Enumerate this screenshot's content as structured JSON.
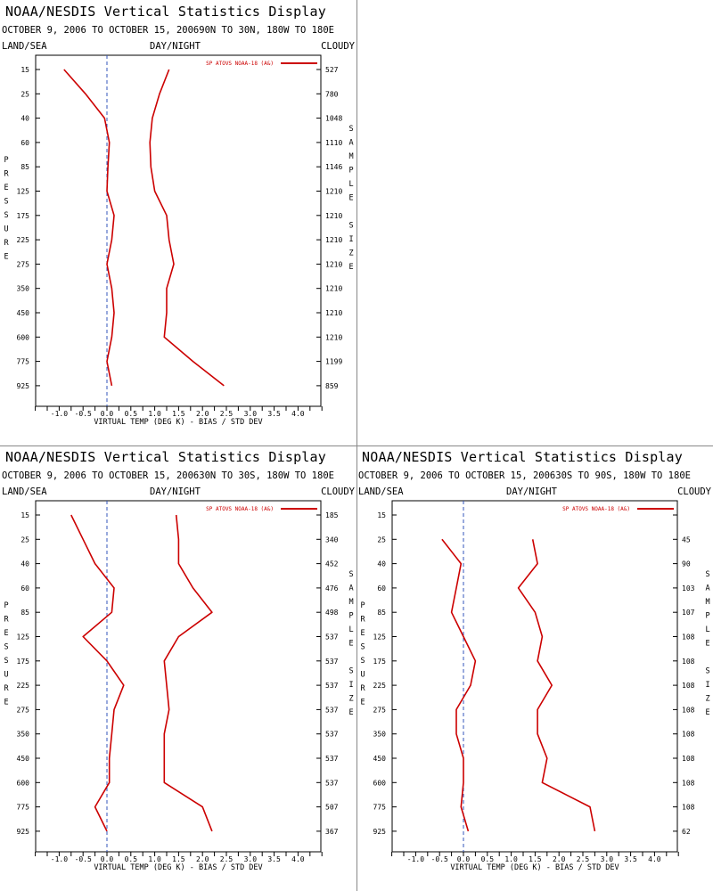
{
  "chart_data": [
    {
      "type": "line",
      "title": "NOAA/NESDIS Vertical Statistics Display",
      "subtitle": "OCTOBER 9, 2006 TO OCTOBER 15, 200690N TO 30N, 180W TO 180E",
      "left_label": "LAND/SEA",
      "center_label": "DAY/NIGHT",
      "right_label": "CLOUDY",
      "xlabel": "VIRTUAL TEMP (DEG K) - BIAS / STD DEV",
      "ylabel": "PRESSURE",
      "y2label": "SAMPLE SIZE",
      "legend_entry": "SP ATOVS NOAA-18 (A&)",
      "legend_position": "top-right",
      "xlim": [
        -1.5,
        4.5
      ],
      "xticks": [
        "-1.0",
        "-0.5",
        "0.0",
        "0.5",
        "1.0",
        "1.5",
        "2.0",
        "2.5",
        "3.0",
        "3.5",
        "4.0"
      ],
      "pressure_levels": [
        "15",
        "25",
        "40",
        "60",
        "85",
        "125",
        "175",
        "225",
        "275",
        "350",
        "450",
        "600",
        "775",
        "925"
      ],
      "sample_size": [
        "527",
        "780",
        "1048",
        "1110",
        "1146",
        "1210",
        "1210",
        "1210",
        "1210",
        "1210",
        "1210",
        "1210",
        "1199",
        "859"
      ],
      "series": [
        {
          "role": "bias",
          "levels": [
            0,
            1,
            2,
            3,
            4,
            5,
            6,
            7,
            8,
            9,
            10,
            11,
            12,
            13
          ],
          "values": [
            -0.9,
            -0.45,
            -0.05,
            0.05,
            0.02,
            0.0,
            0.15,
            0.1,
            0.0,
            0.1,
            0.15,
            0.1,
            0.0,
            0.1
          ]
        },
        {
          "role": "std_dev",
          "levels": [
            0,
            1,
            2,
            3,
            4,
            5,
            6,
            7,
            8,
            9,
            10,
            11,
            12,
            13
          ],
          "values": [
            1.3,
            1.1,
            0.95,
            0.9,
            0.92,
            1.0,
            1.25,
            1.3,
            1.4,
            1.25,
            1.25,
            1.2,
            1.8,
            2.45
          ]
        }
      ]
    },
    {
      "type": "line",
      "title": "NOAA/NESDIS Vertical Statistics Display",
      "subtitle": "OCTOBER 9, 2006 TO OCTOBER 15, 200630N TO 30S, 180W TO 180E",
      "left_label": "LAND/SEA",
      "center_label": "DAY/NIGHT",
      "right_label": "CLOUDY",
      "xlabel": "VIRTUAL TEMP (DEG K) - BIAS / STD DEV",
      "ylabel": "PRESSURE",
      "y2label": "SAMPLE SIZE",
      "legend_entry": "SP ATOVS NOAA-18 (A&)",
      "legend_position": "top-right",
      "xlim": [
        -1.5,
        4.5
      ],
      "xticks": [
        "-1.0",
        "-0.5",
        "0.0",
        "0.5",
        "1.0",
        "1.5",
        "2.0",
        "2.5",
        "3.0",
        "3.5",
        "4.0"
      ],
      "pressure_levels": [
        "15",
        "25",
        "40",
        "60",
        "85",
        "125",
        "175",
        "225",
        "275",
        "350",
        "450",
        "600",
        "775",
        "925"
      ],
      "sample_size": [
        "185",
        "340",
        "452",
        "476",
        "498",
        "537",
        "537",
        "537",
        "537",
        "537",
        "537",
        "537",
        "507",
        "367"
      ],
      "series": [
        {
          "role": "bias",
          "levels": [
            0,
            1,
            2,
            3,
            4,
            5,
            6,
            7,
            8,
            9,
            10,
            11,
            12,
            13
          ],
          "values": [
            -0.75,
            -0.5,
            -0.25,
            0.15,
            0.1,
            -0.5,
            0.0,
            0.35,
            0.15,
            0.1,
            0.05,
            0.05,
            -0.25,
            0.0
          ]
        },
        {
          "role": "std_dev",
          "levels": [
            0,
            1,
            2,
            3,
            4,
            5,
            6,
            7,
            8,
            9,
            10,
            11,
            12,
            13
          ],
          "values": [
            1.45,
            1.5,
            1.5,
            1.8,
            2.2,
            1.5,
            1.2,
            1.25,
            1.3,
            1.2,
            1.2,
            1.2,
            2.0,
            2.2
          ]
        }
      ]
    },
    {
      "type": "line",
      "title": "NOAA/NESDIS Vertical Statistics Display",
      "subtitle": "OCTOBER 9, 2006 TO OCTOBER 15, 200630S TO 90S, 180W TO 180E",
      "left_label": "LAND/SEA",
      "center_label": "DAY/NIGHT",
      "right_label": "CLOUDY",
      "xlabel": "VIRTUAL TEMP (DEG K) - BIAS / STD DEV",
      "ylabel": "PRESSURE",
      "y2label": "SAMPLE SIZE",
      "legend_entry": "SP ATOVS NOAA-18 (A&)",
      "legend_position": "top-right",
      "xlim": [
        -1.5,
        4.5
      ],
      "xticks": [
        "-1.0",
        "-0.5",
        "0.0",
        "0.5",
        "1.0",
        "1.5",
        "2.0",
        "2.5",
        "3.0",
        "3.5",
        "4.0"
      ],
      "pressure_levels": [
        "15",
        "25",
        "40",
        "60",
        "85",
        "125",
        "175",
        "225",
        "275",
        "350",
        "450",
        "600",
        "775",
        "925"
      ],
      "sample_size": [
        "",
        "45",
        "90",
        "103",
        "107",
        "108",
        "108",
        "108",
        "108",
        "108",
        "108",
        "108",
        "108",
        "62"
      ],
      "series": [
        {
          "role": "bias",
          "levels": [
            1,
            2,
            3,
            4,
            5,
            6,
            7,
            8,
            9,
            10,
            11,
            12,
            13
          ],
          "values": [
            -0.45,
            -0.05,
            -0.15,
            -0.25,
            0.0,
            0.25,
            0.15,
            -0.15,
            -0.15,
            0.0,
            0.0,
            -0.05,
            0.1
          ]
        },
        {
          "role": "std_dev",
          "levels": [
            1,
            2,
            3,
            4,
            5,
            6,
            7,
            8,
            9,
            10,
            11,
            12,
            13
          ],
          "values": [
            1.45,
            1.55,
            1.15,
            1.5,
            1.65,
            1.55,
            1.85,
            1.55,
            1.55,
            1.75,
            1.65,
            2.65,
            2.75
          ]
        }
      ]
    }
  ],
  "colors": {
    "series": "#cc0000",
    "zero_line": "#3355bb",
    "axis": "#000000"
  }
}
